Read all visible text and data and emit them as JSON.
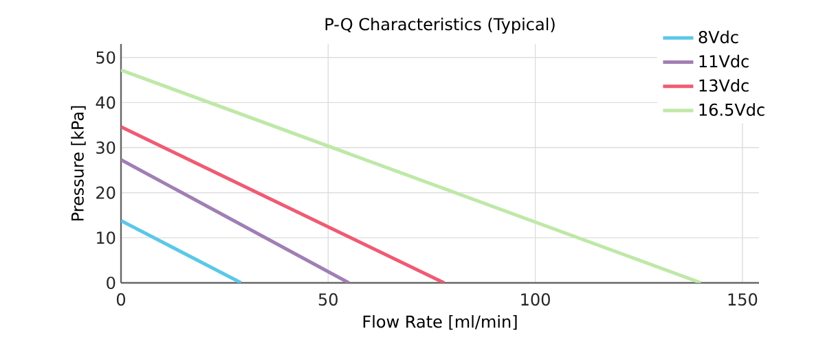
{
  "chart_data": {
    "type": "line",
    "title": "P-Q Characteristics (Typical)",
    "xlabel": "Flow Rate [ml/min]",
    "ylabel": "Pressure [kPa]",
    "xlim": [
      0,
      154
    ],
    "ylim": [
      0,
      53
    ],
    "xticks": [
      0,
      50,
      100,
      150
    ],
    "yticks": [
      0,
      10,
      20,
      30,
      40,
      50
    ],
    "grid": true,
    "legend": "top right",
    "marker": "none",
    "line_style": "solid",
    "series": [
      {
        "name": "8Vdc",
        "color": "#5bc8e8",
        "x": [
          0,
          29
        ],
        "values": [
          13.8,
          0
        ]
      },
      {
        "name": "11Vdc",
        "color": "#a07fb4",
        "x": [
          0,
          55
        ],
        "values": [
          27.3,
          0
        ]
      },
      {
        "name": "13Vdc",
        "color": "#ef5b73",
        "x": [
          0,
          78
        ],
        "values": [
          34.6,
          0
        ]
      },
      {
        "name": "16.5Vdc",
        "color": "#bfe8a8",
        "x": [
          0,
          140
        ],
        "values": [
          47.2,
          0
        ]
      }
    ]
  }
}
